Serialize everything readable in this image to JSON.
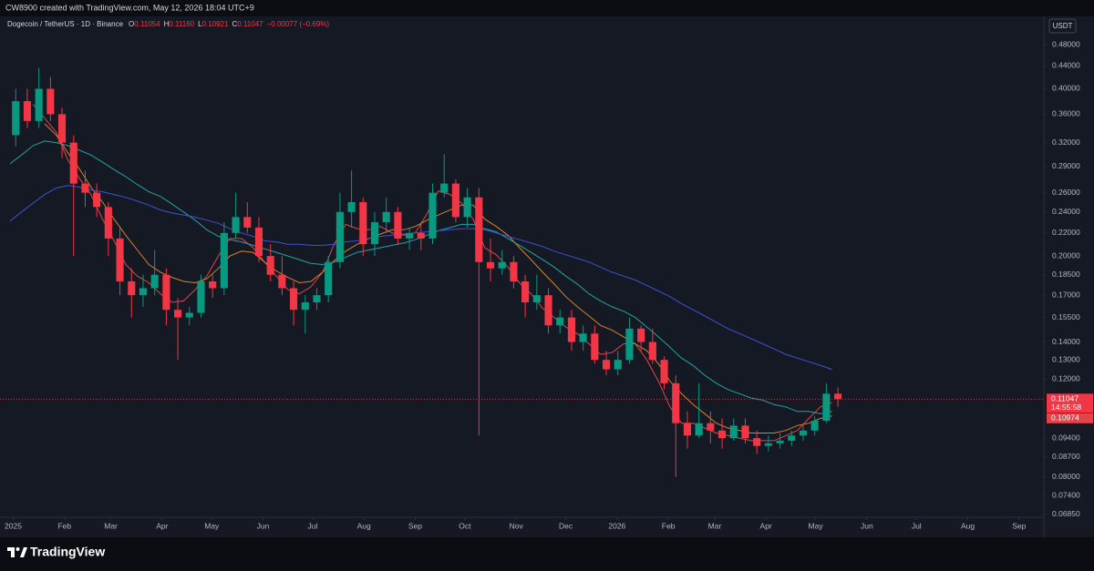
{
  "header": {
    "text": "CW8900 created with TradingView.com, May 12, 2026 18:04 UTC+9"
  },
  "footer": {
    "brand": "TradingView"
  },
  "chart_data": {
    "type": "candlestick",
    "title": "Dogecoin / TetherUS · 1D · Binance",
    "ohlc_legend": [
      {
        "label": "O",
        "value": "0.11054"
      },
      {
        "label": "H",
        "value": "0.11160"
      },
      {
        "label": "L",
        "value": "0.10921"
      },
      {
        "label": "C",
        "value": "0.11047"
      }
    ],
    "change": "−0.00077 (−0.69%)",
    "y_unit": "USDT",
    "log_scale": true,
    "grid": false,
    "up_color": "#089981",
    "down_color": "#f23645",
    "x": [
      "2024-12-30",
      "2025-01-06",
      "2025-01-13",
      "2025-01-20",
      "2025-01-27",
      "2025-02-03",
      "2025-02-10",
      "2025-02-17",
      "2025-02-24",
      "2025-03-03",
      "2025-03-10",
      "2025-03-17",
      "2025-03-24",
      "2025-03-31",
      "2025-04-07",
      "2025-04-14",
      "2025-04-21",
      "2025-04-28",
      "2025-05-05",
      "2025-05-12",
      "2025-05-19",
      "2025-05-26",
      "2025-06-02",
      "2025-06-09",
      "2025-06-16",
      "2025-06-23",
      "2025-06-30",
      "2025-07-07",
      "2025-07-14",
      "2025-07-21",
      "2025-07-28",
      "2025-08-04",
      "2025-08-11",
      "2025-08-18",
      "2025-08-25",
      "2025-09-01",
      "2025-09-08",
      "2025-09-15",
      "2025-09-22",
      "2025-09-29",
      "2025-10-06",
      "2025-10-13",
      "2025-10-20",
      "2025-10-27",
      "2025-11-03",
      "2025-11-10",
      "2025-11-17",
      "2025-11-24",
      "2025-12-01",
      "2025-12-08",
      "2025-12-15",
      "2025-12-22",
      "2025-12-29",
      "2026-01-05",
      "2026-01-12",
      "2026-01-19",
      "2026-01-26",
      "2026-02-02",
      "2026-02-09",
      "2026-02-16",
      "2026-02-23",
      "2026-03-02",
      "2026-03-09",
      "2026-03-16",
      "2026-03-23",
      "2026-03-30",
      "2026-04-06",
      "2026-04-13",
      "2026-04-20",
      "2026-04-27",
      "2026-05-04",
      "2026-05-11"
    ],
    "open": [
      0.33,
      0.38,
      0.35,
      0.4,
      0.36,
      0.32,
      0.27,
      0.26,
      0.245,
      0.215,
      0.18,
      0.17,
      0.175,
      0.185,
      0.16,
      0.155,
      0.158,
      0.18,
      0.175,
      0.22,
      0.235,
      0.225,
      0.2,
      0.185,
      0.175,
      0.16,
      0.165,
      0.17,
      0.195,
      0.24,
      0.25,
      0.21,
      0.23,
      0.24,
      0.215,
      0.22,
      0.215,
      0.26,
      0.27,
      0.235,
      0.255,
      0.195,
      0.19,
      0.195,
      0.18,
      0.165,
      0.17,
      0.15,
      0.155,
      0.14,
      0.145,
      0.13,
      0.125,
      0.13,
      0.148,
      0.14,
      0.13,
      0.118,
      0.1,
      0.095,
      0.1,
      0.097,
      0.094,
      0.099,
      0.094,
      0.091,
      0.092,
      0.093,
      0.095,
      0.097,
      0.101,
      0.113
    ],
    "high": [
      0.4,
      0.4,
      0.436,
      0.42,
      0.37,
      0.33,
      0.285,
      0.27,
      0.25,
      0.225,
      0.19,
      0.185,
      0.205,
      0.19,
      0.168,
      0.162,
      0.185,
      0.185,
      0.23,
      0.26,
      0.25,
      0.235,
      0.21,
      0.2,
      0.18,
      0.17,
      0.175,
      0.2,
      0.26,
      0.285,
      0.255,
      0.24,
      0.255,
      0.245,
      0.225,
      0.23,
      0.27,
      0.305,
      0.275,
      0.265,
      0.265,
      0.215,
      0.205,
      0.2,
      0.185,
      0.185,
      0.175,
      0.16,
      0.16,
      0.15,
      0.15,
      0.135,
      0.135,
      0.155,
      0.15,
      0.148,
      0.132,
      0.122,
      0.105,
      0.118,
      0.105,
      0.102,
      0.102,
      0.102,
      0.097,
      0.095,
      0.096,
      0.097,
      0.099,
      0.103,
      0.118,
      0.116
    ],
    "low": [
      0.315,
      0.34,
      0.34,
      0.35,
      0.3,
      0.2,
      0.245,
      0.235,
      0.2,
      0.17,
      0.155,
      0.162,
      0.17,
      0.15,
      0.13,
      0.15,
      0.155,
      0.168,
      0.17,
      0.215,
      0.22,
      0.195,
      0.18,
      0.17,
      0.15,
      0.145,
      0.16,
      0.165,
      0.19,
      0.225,
      0.2,
      0.2,
      0.22,
      0.21,
      0.205,
      0.205,
      0.21,
      0.255,
      0.23,
      0.225,
      0.095,
      0.18,
      0.185,
      0.175,
      0.155,
      0.16,
      0.145,
      0.145,
      0.135,
      0.135,
      0.128,
      0.122,
      0.122,
      0.128,
      0.135,
      0.128,
      0.115,
      0.08,
      0.09,
      0.094,
      0.092,
      0.09,
      0.093,
      0.092,
      0.088,
      0.089,
      0.09,
      0.091,
      0.093,
      0.095,
      0.1,
      0.107
    ],
    "close": [
      0.38,
      0.35,
      0.4,
      0.36,
      0.32,
      0.27,
      0.26,
      0.245,
      0.215,
      0.18,
      0.17,
      0.175,
      0.185,
      0.16,
      0.155,
      0.158,
      0.18,
      0.175,
      0.22,
      0.235,
      0.225,
      0.2,
      0.185,
      0.175,
      0.16,
      0.165,
      0.17,
      0.195,
      0.24,
      0.25,
      0.21,
      0.23,
      0.24,
      0.215,
      0.22,
      0.215,
      0.26,
      0.27,
      0.235,
      0.255,
      0.195,
      0.19,
      0.195,
      0.18,
      0.165,
      0.17,
      0.15,
      0.155,
      0.14,
      0.145,
      0.13,
      0.125,
      0.13,
      0.148,
      0.14,
      0.13,
      0.118,
      0.1,
      0.095,
      0.1,
      0.097,
      0.094,
      0.099,
      0.094,
      0.091,
      0.092,
      0.093,
      0.095,
      0.097,
      0.101,
      0.113,
      0.11047
    ],
    "overlays": [
      {
        "color": "#e5434a",
        "values": [
          null,
          null,
          0.375,
          0.354,
          0.334,
          0.298,
          0.276,
          0.258,
          0.233,
          0.213,
          0.193,
          0.184,
          0.179,
          0.171,
          0.165,
          0.166,
          0.174,
          0.184,
          0.2,
          0.215,
          0.215,
          0.207,
          0.195,
          0.184,
          0.174,
          0.171,
          0.176,
          0.187,
          0.21,
          0.228,
          0.224,
          0.223,
          0.226,
          0.22,
          0.218,
          0.22,
          0.238,
          0.262,
          0.258,
          0.249,
          0.233,
          0.207,
          0.201,
          0.191,
          0.179,
          0.171,
          0.161,
          0.155,
          0.149,
          0.145,
          0.139,
          0.133,
          0.134,
          0.139,
          0.139,
          0.13,
          0.119,
          0.107,
          0.1,
          0.1,
          0.098,
          0.096,
          0.095,
          0.094,
          0.093,
          0.093,
          0.093,
          0.095,
          0.097,
          0.102,
          0.107,
          0.109
        ]
      },
      {
        "color": "#d9822b",
        "values": [
          null,
          null,
          null,
          0.346,
          0.33,
          0.307,
          0.287,
          0.266,
          0.25,
          0.233,
          0.218,
          0.205,
          0.193,
          0.187,
          0.183,
          0.18,
          0.179,
          0.182,
          0.19,
          0.2,
          0.204,
          0.203,
          0.195,
          0.188,
          0.183,
          0.179,
          0.18,
          0.187,
          0.196,
          0.204,
          0.21,
          0.215,
          0.219,
          0.223,
          0.223,
          0.226,
          0.232,
          0.237,
          0.242,
          0.247,
          0.247,
          0.233,
          0.226,
          0.218,
          0.207,
          0.197,
          0.187,
          0.178,
          0.169,
          0.162,
          0.156,
          0.15,
          0.147,
          0.143,
          0.139,
          0.135,
          0.128,
          0.119,
          0.113,
          0.108,
          0.104,
          0.1,
          0.098,
          0.097,
          0.096,
          0.096,
          0.096,
          0.097,
          0.099,
          0.1,
          0.102,
          0.103
        ]
      },
      {
        "color": "#22a3a0",
        "values": [
          0.293,
          0.304,
          0.316,
          0.322,
          0.32,
          0.316,
          0.31,
          0.304,
          0.295,
          0.286,
          0.278,
          0.269,
          0.261,
          0.256,
          0.248,
          0.24,
          0.232,
          0.223,
          0.217,
          0.214,
          0.212,
          0.209,
          0.206,
          0.203,
          0.2,
          0.197,
          0.194,
          0.193,
          0.195,
          0.199,
          0.203,
          0.205,
          0.207,
          0.209,
          0.211,
          0.214,
          0.218,
          0.222,
          0.225,
          0.228,
          0.228,
          0.224,
          0.221,
          0.215,
          0.209,
          0.203,
          0.197,
          0.191,
          0.184,
          0.178,
          0.171,
          0.166,
          0.162,
          0.159,
          0.155,
          0.149,
          0.143,
          0.137,
          0.131,
          0.127,
          0.122,
          0.118,
          0.115,
          0.113,
          0.111,
          0.11,
          0.108,
          0.107,
          0.105,
          0.105,
          0.104,
          0.105
        ]
      },
      {
        "color": "#3f51d6",
        "values": [
          0.231,
          0.24,
          0.249,
          0.258,
          0.265,
          0.268,
          0.266,
          0.263,
          0.261,
          0.258,
          0.255,
          0.251,
          0.247,
          0.242,
          0.239,
          0.237,
          0.235,
          0.232,
          0.229,
          0.224,
          0.22,
          0.217,
          0.213,
          0.212,
          0.21,
          0.21,
          0.209,
          0.209,
          0.21,
          0.212,
          0.213,
          0.215,
          0.217,
          0.218,
          0.219,
          0.22,
          0.221,
          0.222,
          0.223,
          0.224,
          0.224,
          0.223,
          0.22,
          0.217,
          0.214,
          0.211,
          0.208,
          0.204,
          0.201,
          0.198,
          0.195,
          0.191,
          0.187,
          0.184,
          0.181,
          0.177,
          0.173,
          0.169,
          0.164,
          0.16,
          0.156,
          0.152,
          0.148,
          0.145,
          0.142,
          0.139,
          0.136,
          0.133,
          0.131,
          0.129,
          0.127,
          0.125
        ]
      }
    ],
    "ylim": [
      0.0677,
      0.54
    ],
    "yticks": [
      {
        "value": 0.48,
        "label": "0.48000"
      },
      {
        "value": 0.44,
        "label": "0.44000"
      },
      {
        "value": 0.4,
        "label": "0.40000"
      },
      {
        "value": 0.36,
        "label": "0.36000"
      },
      {
        "value": 0.32,
        "label": "0.32000"
      },
      {
        "value": 0.29,
        "label": "0.29000"
      },
      {
        "value": 0.26,
        "label": "0.26000"
      },
      {
        "value": 0.24,
        "label": "0.24000"
      },
      {
        "value": 0.22,
        "label": "0.22000"
      },
      {
        "value": 0.2,
        "label": "0.20000"
      },
      {
        "value": 0.185,
        "label": "0.18500"
      },
      {
        "value": 0.17,
        "label": "0.17000"
      },
      {
        "value": 0.155,
        "label": "0.15500"
      },
      {
        "value": 0.14,
        "label": "0.14000"
      },
      {
        "value": 0.13,
        "label": "0.13000"
      },
      {
        "value": 0.12,
        "label": "0.12000"
      },
      {
        "value": 0.094,
        "label": "0.09400"
      },
      {
        "value": 0.087,
        "label": "0.08700"
      },
      {
        "value": 0.08,
        "label": "0.08000"
      },
      {
        "value": 0.074,
        "label": "0.07400"
      },
      {
        "value": 0.0685,
        "label": "0.06850"
      }
    ],
    "xlim": [
      "2024-12-24",
      "2026-09-16"
    ],
    "xticks": [
      {
        "value": "2025-01-01",
        "label": "2025"
      },
      {
        "value": "2025-02-01",
        "label": "Feb"
      },
      {
        "value": "2025-03-01",
        "label": "Mar"
      },
      {
        "value": "2025-04-01",
        "label": "Apr"
      },
      {
        "value": "2025-05-01",
        "label": "May"
      },
      {
        "value": "2025-06-01",
        "label": "Jun"
      },
      {
        "value": "2025-07-01",
        "label": "Jul"
      },
      {
        "value": "2025-08-01",
        "label": "Aug"
      },
      {
        "value": "2025-09-01",
        "label": "Sep"
      },
      {
        "value": "2025-10-01",
        "label": "Oct"
      },
      {
        "value": "2025-11-01",
        "label": "Nov"
      },
      {
        "value": "2025-12-01",
        "label": "Dec"
      },
      {
        "value": "2026-01-01",
        "label": "2026"
      },
      {
        "value": "2026-02-01",
        "label": "Feb"
      },
      {
        "value": "2026-03-01",
        "label": "Mar"
      },
      {
        "value": "2026-04-01",
        "label": "Apr"
      },
      {
        "value": "2026-05-01",
        "label": "May"
      },
      {
        "value": "2026-06-01",
        "label": "Jun"
      },
      {
        "value": "2026-07-01",
        "label": "Jul"
      },
      {
        "value": "2026-08-01",
        "label": "Aug"
      },
      {
        "value": "2026-09-01",
        "label": "Sep"
      }
    ],
    "last_price": {
      "value": 0.11047,
      "label": "0.11047",
      "countdown": "14:55:58"
    },
    "ma_label": {
      "value": 0.10974,
      "label": "0.10974"
    }
  }
}
